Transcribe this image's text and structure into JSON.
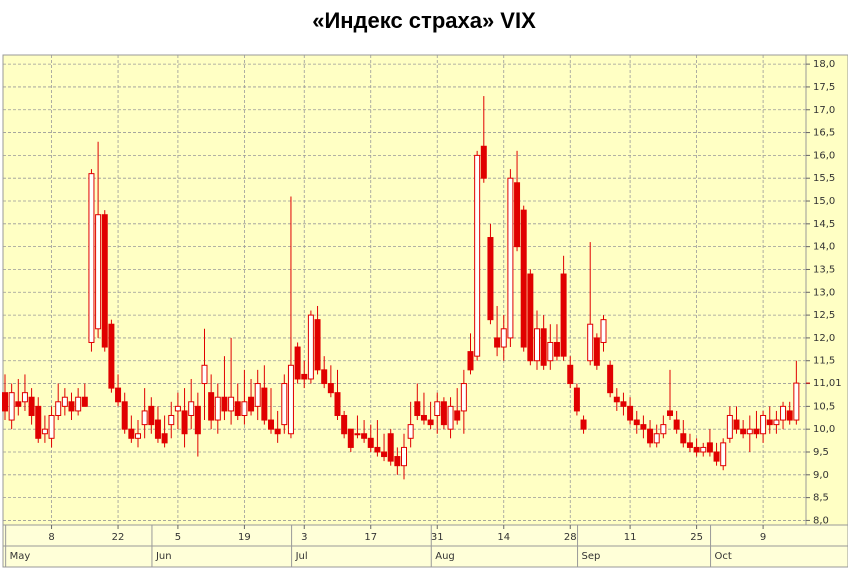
{
  "chart_data": {
    "type": "candlestick",
    "title": "«Индекс страха» VIX",
    "color": "#e00000",
    "ylim": [
      7.9,
      18.2
    ],
    "yticks": [
      {
        "value": 8,
        "label": "8,0"
      },
      {
        "value": 8.5,
        "label": "8,5"
      },
      {
        "value": 9,
        "label": "9,0"
      },
      {
        "value": 9.5,
        "label": "9,5"
      },
      {
        "value": 10,
        "label": "10,0"
      },
      {
        "value": 10.5,
        "label": "10,5"
      },
      {
        "value": 11,
        "label": "11,0"
      },
      {
        "value": 11.5,
        "label": "11,5"
      },
      {
        "value": 12,
        "label": "12,0"
      },
      {
        "value": 12.5,
        "label": "12,5"
      },
      {
        "value": 13,
        "label": "13,0"
      },
      {
        "value": 13.5,
        "label": "13,5"
      },
      {
        "value": 14,
        "label": "14,0"
      },
      {
        "value": 14.5,
        "label": "14,5"
      },
      {
        "value": 15,
        "label": "15,0"
      },
      {
        "value": 15.5,
        "label": "15,5"
      },
      {
        "value": 16,
        "label": "16,0"
      },
      {
        "value": 16.5,
        "label": "16,5"
      },
      {
        "value": 17,
        "label": "17,0"
      },
      {
        "value": 17.5,
        "label": "17,5"
      },
      {
        "value": 18,
        "label": "18,0"
      }
    ],
    "last_label": {
      "value": 11.01,
      "label": "11,01"
    },
    "grid": true,
    "categories": [
      null,
      null,
      null,
      null,
      null,
      null,
      null,
      "8",
      null,
      null,
      null,
      null,
      null,
      null,
      null,
      null,
      null,
      "22",
      null,
      null,
      null,
      null,
      null,
      null,
      null,
      null,
      "5",
      null,
      null,
      null,
      null,
      null,
      null,
      null,
      null,
      null,
      "19",
      null,
      null,
      null,
      null,
      null,
      null,
      null,
      null,
      "3",
      null,
      null,
      null,
      null,
      null,
      null,
      null,
      null,
      null,
      "17",
      null,
      null,
      null,
      null,
      null,
      null,
      null,
      null,
      null,
      "31",
      null,
      null,
      null,
      null,
      null,
      null,
      null,
      null,
      null,
      "14",
      null,
      null,
      null,
      null,
      null,
      null,
      null,
      null,
      null,
      "28",
      null,
      null,
      null,
      null,
      null,
      null,
      null,
      null,
      "11",
      null,
      null,
      null,
      null,
      null,
      null,
      null,
      null,
      null,
      "25",
      null,
      null,
      null,
      null,
      null,
      null,
      null,
      null,
      null,
      "9",
      null,
      null,
      null,
      null,
      null
    ],
    "months": [
      null,
      "May",
      null,
      null,
      null,
      null,
      null,
      null,
      null,
      null,
      null,
      null,
      null,
      null,
      null,
      null,
      null,
      null,
      null,
      null,
      null,
      null,
      null,
      "Jun",
      null,
      null,
      null,
      null,
      null,
      null,
      null,
      null,
      null,
      null,
      null,
      null,
      null,
      null,
      null,
      null,
      null,
      null,
      null,
      null,
      "Jul",
      null,
      null,
      null,
      null,
      null,
      null,
      null,
      null,
      null,
      null,
      null,
      null,
      null,
      null,
      null,
      null,
      null,
      null,
      null,
      null,
      "Aug",
      null,
      null,
      null,
      null,
      null,
      null,
      null,
      null,
      null,
      null,
      null,
      null,
      null,
      null,
      null,
      null,
      null,
      null,
      null,
      null,
      null,
      "Sep",
      null,
      null,
      null,
      null,
      null,
      null,
      null,
      null,
      null,
      null,
      null,
      null,
      null,
      null,
      null,
      null,
      null,
      null,
      null,
      "Oct",
      null,
      null,
      null,
      null,
      null,
      null,
      null,
      null,
      null,
      null,
      null,
      null
    ],
    "ohlc": [
      [
        10.8,
        11.2,
        10.2,
        10.4
      ],
      [
        10.2,
        11.0,
        10.0,
        10.8
      ],
      [
        10.6,
        11.1,
        10.3,
        10.5
      ],
      [
        10.6,
        11.2,
        10.4,
        10.8
      ],
      [
        10.7,
        10.9,
        10.1,
        10.3
      ],
      [
        10.5,
        10.7,
        9.7,
        9.8
      ],
      [
        9.9,
        10.3,
        9.7,
        10.0
      ],
      [
        9.8,
        10.5,
        9.6,
        10.3
      ],
      [
        10.3,
        11.0,
        10.2,
        10.6
      ],
      [
        10.5,
        10.9,
        10.3,
        10.7
      ],
      [
        10.6,
        10.8,
        10.2,
        10.4
      ],
      [
        10.4,
        10.9,
        10.3,
        10.7
      ],
      [
        10.7,
        11.0,
        10.5,
        10.5
      ],
      [
        11.9,
        15.7,
        11.7,
        15.6
      ],
      [
        12.2,
        16.3,
        12.0,
        14.7
      ],
      [
        14.7,
        14.8,
        11.7,
        11.8
      ],
      [
        12.3,
        12.4,
        10.8,
        10.9
      ],
      [
        10.9,
        11.2,
        10.5,
        10.6
      ],
      [
        10.6,
        10.8,
        9.9,
        10.0
      ],
      [
        10.0,
        10.3,
        9.7,
        9.8
      ],
      [
        9.8,
        10.2,
        9.6,
        9.9
      ],
      [
        10.1,
        10.9,
        9.8,
        10.4
      ],
      [
        10.5,
        10.7,
        9.9,
        10.1
      ],
      [
        10.2,
        10.5,
        9.7,
        9.8
      ],
      [
        9.9,
        10.3,
        9.6,
        9.7
      ],
      [
        10.1,
        10.6,
        9.8,
        10.3
      ],
      [
        10.4,
        10.8,
        10.0,
        10.5
      ],
      [
        10.4,
        10.9,
        9.6,
        9.9
      ],
      [
        10.3,
        11.1,
        10.0,
        10.6
      ],
      [
        10.5,
        10.8,
        9.4,
        9.9
      ],
      [
        11.0,
        12.2,
        10.2,
        11.4
      ],
      [
        10.8,
        11.2,
        10.0,
        10.2
      ],
      [
        10.2,
        11.0,
        9.9,
        10.7
      ],
      [
        10.7,
        11.6,
        10.2,
        10.4
      ],
      [
        10.4,
        12.0,
        10.1,
        10.7
      ],
      [
        10.6,
        11.0,
        10.2,
        10.3
      ],
      [
        10.3,
        11.3,
        10.1,
        10.6
      ],
      [
        10.7,
        11.1,
        10.3,
        10.4
      ],
      [
        10.5,
        11.3,
        10.2,
        11.0
      ],
      [
        10.9,
        11.4,
        10.1,
        10.2
      ],
      [
        10.2,
        10.9,
        9.9,
        10.0
      ],
      [
        10.0,
        10.4,
        9.7,
        9.9
      ],
      [
        10.1,
        11.2,
        9.9,
        11.0
      ],
      [
        9.9,
        15.1,
        9.8,
        11.4
      ],
      [
        11.8,
        11.9,
        11.0,
        11.1
      ],
      [
        11.2,
        11.5,
        10.9,
        11.1
      ],
      [
        11.1,
        12.6,
        11.0,
        12.5
      ],
      [
        12.4,
        12.7,
        11.2,
        11.3
      ],
      [
        11.3,
        11.6,
        10.9,
        11.0
      ],
      [
        11.0,
        11.4,
        10.7,
        10.8
      ],
      [
        10.8,
        11.3,
        10.2,
        10.3
      ],
      [
        10.3,
        10.4,
        9.8,
        9.9
      ],
      [
        10.0,
        10.0,
        9.5,
        9.6
      ],
      [
        9.9,
        10.3,
        9.8,
        9.9
      ],
      [
        9.9,
        10.2,
        9.7,
        9.8
      ],
      [
        9.8,
        10.1,
        9.5,
        9.6
      ],
      [
        9.6,
        10.2,
        9.4,
        9.5
      ],
      [
        9.5,
        9.9,
        9.3,
        9.4
      ],
      [
        9.9,
        10.0,
        9.2,
        9.3
      ],
      [
        9.4,
        9.6,
        9.0,
        9.2
      ],
      [
        9.2,
        9.9,
        8.9,
        9.6
      ],
      [
        9.8,
        10.6,
        9.6,
        10.1
      ],
      [
        10.6,
        11.0,
        10.2,
        10.3
      ],
      [
        10.3,
        10.8,
        10.1,
        10.2
      ],
      [
        10.2,
        10.6,
        10.0,
        10.1
      ],
      [
        10.3,
        10.8,
        9.9,
        10.6
      ],
      [
        10.6,
        10.7,
        10.0,
        10.1
      ],
      [
        10.0,
        10.7,
        9.8,
        10.5
      ],
      [
        10.4,
        10.9,
        10.1,
        10.2
      ],
      [
        10.4,
        11.3,
        9.9,
        11.0
      ],
      [
        11.7,
        12.1,
        11.2,
        11.3
      ],
      [
        11.6,
        16.1,
        11.5,
        16.0
      ],
      [
        16.2,
        17.3,
        15.4,
        15.5
      ],
      [
        14.2,
        14.5,
        12.3,
        12.4
      ],
      [
        12.0,
        12.7,
        11.6,
        11.8
      ],
      [
        11.8,
        12.5,
        11.5,
        12.2
      ],
      [
        12.0,
        15.7,
        11.8,
        15.5
      ],
      [
        15.4,
        16.1,
        13.9,
        14.0
      ],
      [
        14.8,
        14.9,
        11.7,
        11.8
      ],
      [
        13.4,
        13.5,
        11.4,
        11.5
      ],
      [
        11.5,
        12.6,
        11.3,
        12.2
      ],
      [
        12.2,
        12.5,
        11.3,
        11.4
      ],
      [
        11.5,
        12.3,
        11.3,
        11.9
      ],
      [
        11.9,
        12.3,
        11.5,
        11.6
      ],
      [
        13.4,
        13.8,
        11.5,
        11.6
      ],
      [
        11.4,
        11.6,
        10.9,
        11.0
      ],
      [
        10.9,
        11.0,
        10.3,
        10.4
      ],
      [
        10.2,
        10.3,
        9.9,
        10.0
      ],
      [
        11.5,
        14.1,
        11.4,
        12.3
      ],
      [
        12.0,
        12.1,
        11.3,
        11.4
      ],
      [
        11.9,
        12.5,
        11.7,
        12.4
      ],
      [
        11.4,
        11.5,
        10.7,
        10.8
      ],
      [
        10.7,
        10.9,
        10.4,
        10.6
      ],
      [
        10.6,
        10.8,
        10.3,
        10.5
      ],
      [
        10.5,
        10.7,
        10.1,
        10.2
      ],
      [
        10.2,
        10.4,
        9.9,
        10.1
      ],
      [
        10.1,
        10.3,
        9.8,
        10.0
      ],
      [
        10.0,
        10.2,
        9.6,
        9.7
      ],
      [
        9.7,
        10.1,
        9.6,
        9.9
      ],
      [
        9.9,
        10.3,
        9.8,
        10.1
      ],
      [
        10.4,
        11.3,
        10.2,
        10.3
      ],
      [
        10.2,
        10.4,
        9.9,
        10.0
      ],
      [
        9.9,
        10.2,
        9.6,
        9.7
      ],
      [
        9.7,
        9.9,
        9.5,
        9.6
      ],
      [
        9.6,
        9.8,
        9.4,
        9.5
      ],
      [
        9.5,
        9.7,
        9.4,
        9.6
      ],
      [
        9.7,
        10.0,
        9.4,
        9.5
      ],
      [
        9.5,
        9.7,
        9.2,
        9.3
      ],
      [
        9.2,
        9.8,
        9.1,
        9.7
      ],
      [
        9.8,
        10.5,
        9.7,
        10.3
      ],
      [
        10.2,
        10.5,
        9.9,
        10.0
      ],
      [
        10.0,
        10.2,
        9.8,
        9.9
      ],
      [
        9.9,
        10.3,
        9.5,
        10.0
      ],
      [
        10.0,
        10.4,
        9.8,
        9.9
      ],
      [
        9.9,
        10.4,
        9.7,
        10.3
      ],
      [
        10.2,
        10.5,
        9.9,
        10.1
      ],
      [
        10.1,
        10.4,
        9.9,
        10.2
      ],
      [
        10.2,
        10.6,
        10.0,
        10.5
      ],
      [
        10.4,
        10.6,
        10.1,
        10.2
      ],
      [
        10.2,
        11.5,
        10.1,
        11.01
      ]
    ]
  }
}
